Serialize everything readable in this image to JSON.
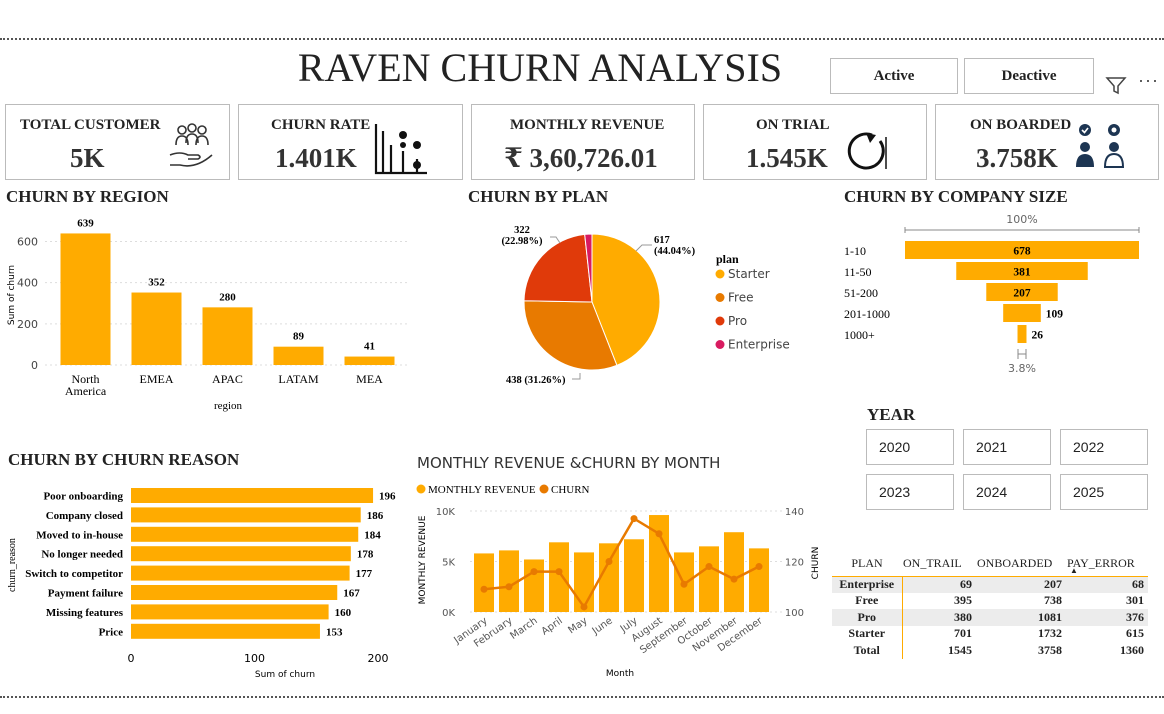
{
  "header": {
    "title": "RAVEN CHURN ANALYSIS",
    "active_label": "Active",
    "deactive_label": "Deactive",
    "colors": {
      "accent": "#FFAB00"
    }
  },
  "kpis": [
    {
      "label": "TOTAL CUSTOMER",
      "value": "5K",
      "icon": "customers-hand-icon"
    },
    {
      "label": "CHURN RATE",
      "value": "1.401K",
      "icon": "churn-chart-icon"
    },
    {
      "label": "MONTHLY REVENUE",
      "value": "₹ 3,60,726.01"
    },
    {
      "label": "ON TRIAL",
      "value": "1.545K",
      "icon": "refresh-icon"
    },
    {
      "label": "ON BOARDED",
      "value": "3.758K",
      "icon": "onboard-people-icon"
    }
  ],
  "region_chart": {
    "title": "CHURN BY REGION",
    "chart_data": {
      "type": "bar",
      "categories": [
        "North America",
        "EMEA",
        "APAC",
        "LATAM",
        "MEA"
      ],
      "values": [
        639,
        352,
        280,
        89,
        41
      ],
      "xlabel": "region",
      "ylabel": "Sum of churn",
      "ylim": [
        0,
        680
      ],
      "yticks": [
        "0",
        "200",
        "400",
        "600"
      ]
    }
  },
  "plan_chart": {
    "title": "CHURN BY PLAN",
    "legend_title": "plan",
    "chart_data": {
      "type": "pie",
      "categories": [
        "Starter",
        "Free",
        "Pro",
        "Enterprise"
      ],
      "values": [
        617,
        438,
        322,
        24
      ],
      "colors": [
        "#FFAB00",
        "#E87A00",
        "#E03A0A",
        "#D81B60"
      ],
      "labels": [
        "617\n(44.04%)",
        "438 (31.26%)",
        "322\n(22.98%)",
        ""
      ]
    }
  },
  "size_chart": {
    "title": "CHURN BY COMPANY SIZE",
    "top_label": "100%",
    "bottom_label": "3.8%",
    "chart_data": {
      "type": "bar",
      "categories": [
        "1-10",
        "11-50",
        "51-200",
        "201-1000",
        "1000+"
      ],
      "values": [
        678,
        381,
        207,
        109,
        26
      ]
    }
  },
  "reason_chart": {
    "title": "CHURN BY CHURN REASON",
    "chart_data": {
      "type": "bar",
      "categories": [
        "Poor onboarding",
        "Company closed",
        "Moved to in-house",
        "No longer needed",
        "Switch to competitor",
        "Payment failure",
        "Missing features",
        "Price"
      ],
      "values": [
        196,
        186,
        184,
        178,
        177,
        167,
        160,
        153
      ],
      "xlabel": "Sum of churn",
      "ylabel": "churn_reason",
      "xlim": [
        0,
        200
      ],
      "xticks": [
        "0",
        "100",
        "200"
      ]
    }
  },
  "monthly_chart": {
    "title": "MONTHLY REVENUE &CHURN BY MONTH",
    "legend": [
      "MONTHLY REVENUE",
      "CHURN"
    ],
    "chart_data": {
      "type": "bar",
      "categories": [
        "January",
        "February",
        "March",
        "April",
        "May",
        "June",
        "July",
        "August",
        "September",
        "October",
        "November",
        "December"
      ],
      "series": [
        {
          "name": "MONTHLY REVENUE",
          "type": "bar",
          "values": [
            5800,
            6100,
            5200,
            6900,
            5900,
            6800,
            7200,
            9600,
            5900,
            6500,
            7900,
            6300
          ]
        },
        {
          "name": "CHURN",
          "type": "line",
          "values": [
            109,
            110,
            116,
            116,
            102,
            120,
            137,
            131,
            111,
            118,
            113,
            118
          ]
        }
      ],
      "xlabel": "Month",
      "ylabel": "MONTHLY REVENUE",
      "y2label": "CHURN",
      "ylim": [
        0,
        10000
      ],
      "y2lim": [
        100,
        140
      ],
      "yticks": [
        "0K",
        "5K",
        "10K"
      ],
      "y2ticks": [
        "100",
        "120",
        "140"
      ]
    }
  },
  "year_filter": {
    "title": "YEAR",
    "years": [
      "2020",
      "2021",
      "2022",
      "2023",
      "2024",
      "2025"
    ]
  },
  "matrix": {
    "headers": [
      "PLAN",
      "ON_TRAIL",
      "ONBOARDED",
      "PAY_ERROR"
    ],
    "rows": [
      [
        "Enterprise",
        "69",
        "207",
        "68"
      ],
      [
        "Free",
        "395",
        "738",
        "301"
      ],
      [
        "Pro",
        "380",
        "1081",
        "376"
      ],
      [
        "Starter",
        "701",
        "1732",
        "615"
      ]
    ],
    "total": [
      "Total",
      "1545",
      "3758",
      "1360"
    ]
  }
}
